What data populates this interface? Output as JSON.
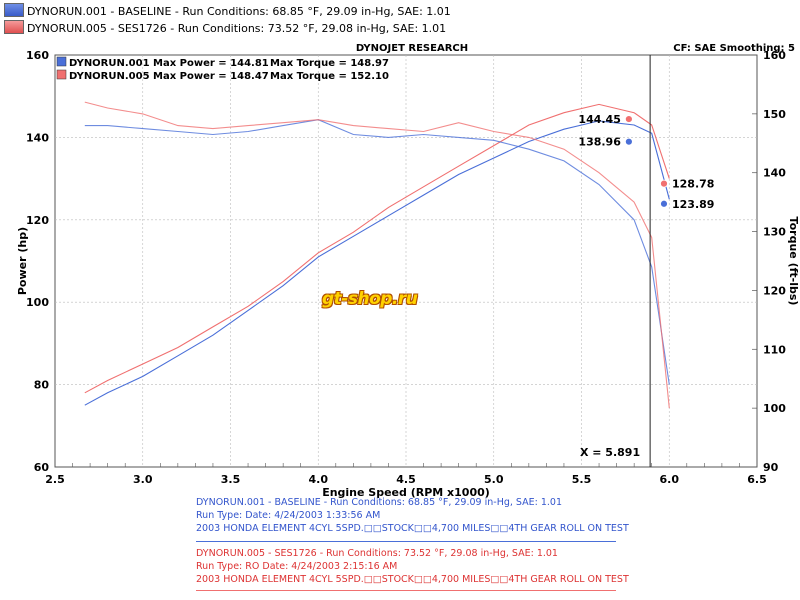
{
  "header": {
    "run1": "DYNORUN.001 - BASELINE  -  Run Conditions: 68.85 °F, 29.09 in-Hg, SAE: 1.01",
    "run2": "DYNORUN.005 - SES1726  -  Run Conditions: 73.52 °F, 29.08 in-Hg, SAE: 1.01"
  },
  "colors": {
    "run1": "#4a6fd8",
    "run2": "#f07070",
    "run1_light": "#9db0ee",
    "run2_light": "#f6aaaa"
  },
  "logo_text": "gt-shop.ru",
  "chart_data": {
    "type": "line",
    "title": "DYNOJET RESEARCH",
    "settings": "CF: SAE   Smoothing: 5",
    "xlabel": "Engine Speed (RPM x1000)",
    "ylabel": "Power (hp)",
    "y2label": "Torque (ft-lbs)",
    "xlim": [
      2.5,
      6.5
    ],
    "ylim": [
      60,
      160
    ],
    "y2lim": [
      90,
      160
    ],
    "x_ticks": [
      "2.5",
      "3.0",
      "3.5",
      "4.0",
      "4.5",
      "5.0",
      "5.5",
      "6.0",
      "6.5"
    ],
    "y_ticks": [
      "60",
      "80",
      "100",
      "120",
      "140",
      "160"
    ],
    "y2_ticks": [
      "90",
      "100",
      "110",
      "120",
      "130",
      "140",
      "150",
      "160"
    ],
    "legend": [
      {
        "label": "DYNORUN.001 Max Power = 144.81",
        "torque": "Max Torque = 148.97"
      },
      {
        "label": "DYNORUN.005 Max Power = 148.47",
        "torque": "Max Torque = 152.10"
      }
    ],
    "cursor": {
      "x": 5.891,
      "label": "X = 5.891"
    },
    "cursor_values": [
      {
        "series": "run1_torque",
        "x": 5.77,
        "value": "138.96",
        "axis": "left"
      },
      {
        "series": "run2_torque",
        "x": 5.77,
        "value": "144.45",
        "axis": "left"
      },
      {
        "series": "run1_power",
        "x": 5.97,
        "value": "123.89",
        "axis": "left"
      },
      {
        "series": "run2_power",
        "x": 5.97,
        "value": "128.78",
        "axis": "left"
      }
    ],
    "series": [
      {
        "name": "DYNORUN.001",
        "kind": "power",
        "axis": "left",
        "x": [
          2.67,
          2.8,
          3.0,
          3.2,
          3.4,
          3.6,
          3.8,
          4.0,
          4.2,
          4.4,
          4.6,
          4.8,
          5.0,
          5.2,
          5.4,
          5.6,
          5.8,
          5.9,
          6.0
        ],
        "y": [
          75,
          78,
          82,
          87,
          92,
          98,
          104,
          111,
          116,
          121,
          126,
          131,
          135,
          139,
          142,
          144,
          143,
          141,
          125
        ]
      },
      {
        "name": "DYNORUN.005",
        "kind": "power",
        "axis": "left",
        "x": [
          2.67,
          2.8,
          3.0,
          3.2,
          3.4,
          3.6,
          3.8,
          4.0,
          4.2,
          4.4,
          4.6,
          4.8,
          5.0,
          5.2,
          5.4,
          5.6,
          5.8,
          5.9,
          6.0
        ],
        "y": [
          78,
          81,
          85,
          89,
          94,
          99,
          105,
          112,
          117,
          123,
          128,
          133,
          138,
          143,
          146,
          148,
          146,
          143,
          130
        ]
      },
      {
        "name": "DYNORUN.001",
        "kind": "torque",
        "axis": "right",
        "x": [
          2.67,
          2.8,
          3.0,
          3.2,
          3.4,
          3.6,
          3.8,
          4.0,
          4.2,
          4.4,
          4.6,
          4.8,
          5.0,
          5.2,
          5.4,
          5.6,
          5.8,
          5.9,
          6.0
        ],
        "y": [
          148,
          148,
          147.5,
          147,
          146.5,
          147,
          148,
          149,
          146.5,
          146,
          146.5,
          146,
          145.5,
          144,
          142,
          138,
          132,
          124,
          104
        ]
      },
      {
        "name": "DYNORUN.005",
        "kind": "torque",
        "axis": "right",
        "x": [
          2.67,
          2.8,
          3.0,
          3.2,
          3.4,
          3.6,
          3.8,
          4.0,
          4.2,
          4.4,
          4.6,
          4.8,
          5.0,
          5.2,
          5.4,
          5.6,
          5.8,
          5.9,
          6.0
        ],
        "y": [
          152,
          151,
          150,
          148,
          147.5,
          148,
          148.5,
          149,
          148,
          147.5,
          147,
          148.5,
          147,
          146,
          144,
          140,
          135,
          129,
          100
        ]
      }
    ]
  },
  "run_info": {
    "run1": {
      "line1": "DYNORUN.001 - BASELINE  -  Run Conditions: 68.85 °F, 29.09 in-Hg, SAE: 1.01",
      "line2": "Run Type:  Date: 4/24/2003 1:33:56 AM",
      "line3": "2003 HONDA ELEMENT 4CYL 5SPD.□□STOCK□□4,700 MILES□□4TH GEAR ROLL ON TEST"
    },
    "run2": {
      "line1": "DYNORUN.005 - SES1726  -  Run Conditions: 73.52 °F, 29.08 in-Hg, SAE: 1.01",
      "line2": "Run Type: RO  Date: 4/24/2003 2:15:16 AM",
      "line3": "2003 HONDA ELEMENT 4CYL 5SPD.□□STOCK□□4,700 MILES□□4TH GEAR ROLL ON TEST"
    }
  }
}
